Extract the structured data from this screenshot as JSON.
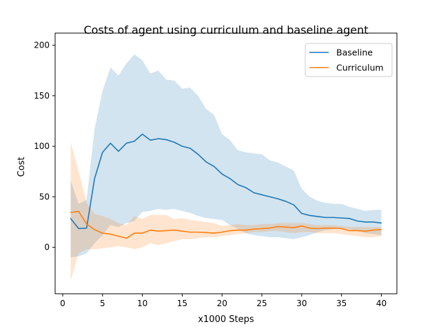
{
  "chart_data": {
    "type": "line",
    "title": "Costs of agent using curriculum and baseline agent",
    "xlabel": "x1000 Steps",
    "ylabel": "Cost",
    "xlim": [
      -0.95,
      41.95
    ],
    "ylim": [
      -46,
      212
    ],
    "xticks": [
      0,
      5,
      10,
      15,
      20,
      25,
      30,
      35,
      40
    ],
    "yticks": [
      0,
      50,
      100,
      150,
      200
    ],
    "grid": false,
    "legend_position": "top-right",
    "x": [
      1,
      2,
      3,
      4,
      5,
      6,
      7,
      8,
      9,
      10,
      11,
      12,
      13,
      14,
      15,
      16,
      17,
      18,
      19,
      20,
      21,
      22,
      23,
      24,
      25,
      26,
      27,
      28,
      29,
      30,
      31,
      32,
      33,
      34,
      35,
      36,
      37,
      38,
      39,
      40
    ],
    "series": [
      {
        "name": "Baseline",
        "color": "#1f77b4",
        "values": [
          28.5,
          18.5,
          19,
          68,
          94,
          103,
          95,
          103,
          105,
          112,
          106,
          107.5,
          106.5,
          104,
          100,
          98,
          92,
          84.5,
          80,
          72.5,
          68,
          62,
          59,
          54,
          52,
          50,
          48,
          45.5,
          42,
          33.5,
          31.5,
          30.5,
          29.5,
          29.5,
          29,
          28.5,
          26,
          25,
          25,
          24
        ],
        "lower": [
          -10,
          -9,
          -6,
          4,
          12,
          22,
          20,
          24,
          26,
          35,
          36,
          38,
          37,
          38,
          36,
          34,
          31,
          29,
          28,
          27,
          22,
          18,
          14,
          12,
          11,
          10,
          10,
          9,
          8,
          10,
          12,
          15,
          17,
          18,
          19,
          18,
          16,
          14,
          13,
          12
        ],
        "upper": [
          66,
          43,
          47,
          117,
          155,
          178,
          170,
          182,
          191,
          185,
          172,
          175,
          166,
          165,
          157,
          158,
          150,
          137,
          131,
          112,
          106,
          96,
          94,
          93,
          92,
          86,
          84,
          80,
          76,
          58,
          50,
          46,
          44,
          43,
          43,
          40,
          38,
          36,
          37,
          37
        ]
      },
      {
        "name": "Curriculum",
        "color": "#ff7f0e",
        "values": [
          34.5,
          35.5,
          23,
          17.5,
          14,
          13,
          11,
          9,
          14,
          14,
          17,
          16,
          16.5,
          17,
          16,
          15,
          15,
          14.5,
          14,
          15,
          16.5,
          17,
          17,
          18,
          18.5,
          19,
          20.5,
          20,
          19.5,
          21,
          19,
          18.5,
          19,
          19,
          18.5,
          16.5,
          16.5,
          16,
          17,
          17.5
        ],
        "lower": [
          -33,
          -6,
          -2,
          -2,
          -1,
          0,
          1,
          0,
          -2,
          0,
          4,
          2,
          4,
          6,
          8,
          8,
          9,
          10,
          10,
          11,
          12,
          13,
          14,
          15,
          15,
          16,
          16,
          15,
          14,
          15,
          15,
          14,
          14,
          14,
          13,
          12,
          11,
          10,
          10,
          11
        ],
        "upper": [
          104,
          75,
          44,
          33,
          31,
          28,
          24,
          22,
          31,
          28,
          32,
          32,
          32,
          28,
          29,
          27,
          26,
          25,
          24,
          21,
          22,
          23,
          22,
          22,
          23,
          23,
          24,
          24,
          24,
          24,
          23,
          22,
          22,
          22,
          21,
          20,
          20,
          20,
          20,
          20
        ]
      }
    ]
  }
}
